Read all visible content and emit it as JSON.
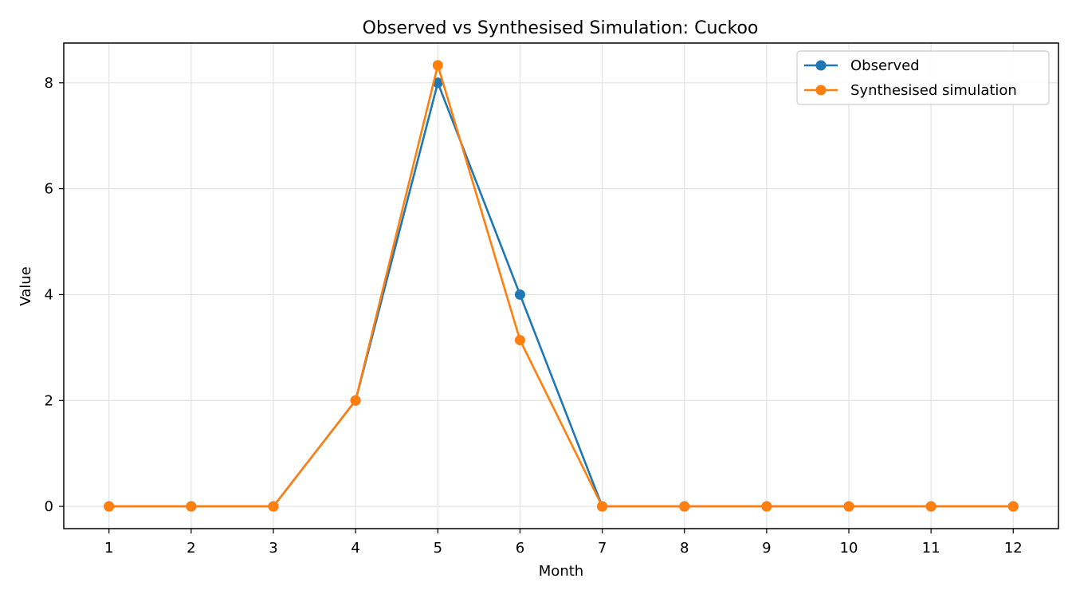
{
  "chart_data": {
    "type": "line",
    "title": "Observed vs Synthesised Simulation: Cuckoo",
    "xlabel": "Month",
    "ylabel": "Value",
    "x": [
      1,
      2,
      3,
      4,
      5,
      6,
      7,
      8,
      9,
      10,
      11,
      12
    ],
    "xlim": [
      0.45,
      12.55
    ],
    "ylim": [
      -0.42,
      8.75
    ],
    "yticks": [
      0,
      2,
      4,
      6,
      8
    ],
    "grid": true,
    "legend_position": "top-right",
    "series": [
      {
        "name": "Observed",
        "color": "#1f77b4",
        "marker": "circle",
        "values": [
          0,
          0,
          0,
          2,
          8,
          4,
          0,
          0,
          0,
          0,
          0,
          0
        ]
      },
      {
        "name": "Synthesised simulation",
        "color": "#ff7f0e",
        "marker": "circle",
        "values": [
          0,
          0,
          0,
          2,
          8.33,
          3.14,
          0,
          0,
          0,
          0,
          0,
          0
        ]
      }
    ]
  }
}
